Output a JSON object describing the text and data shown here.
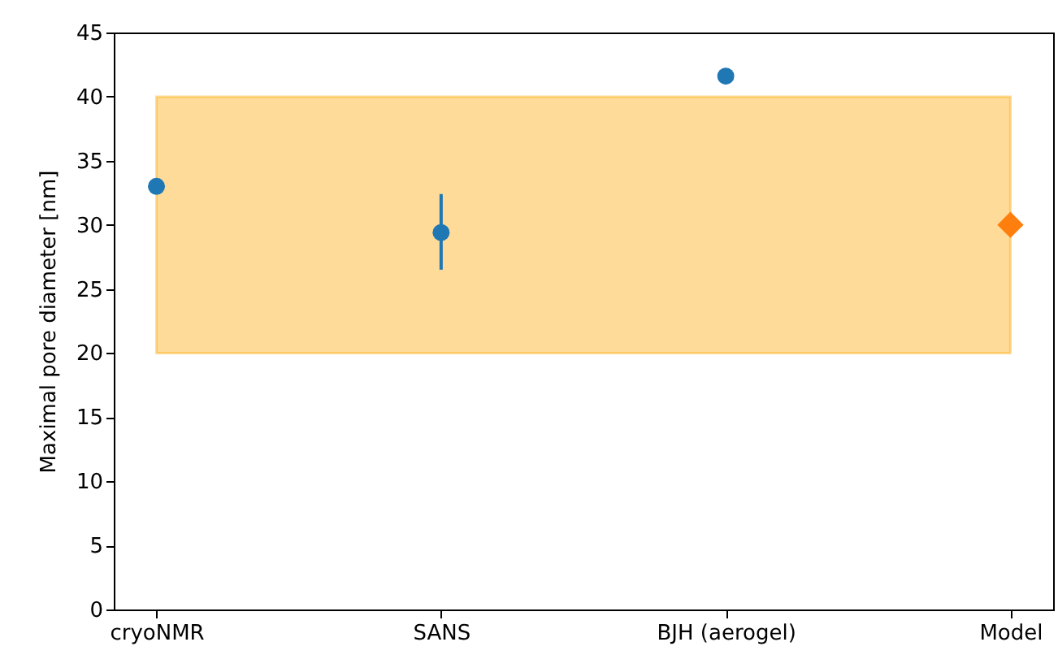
{
  "chart_data": {
    "type": "scatter",
    "ylabel": "Maximal pore diameter [nm]",
    "categories": [
      "cryoNMR",
      "SANS",
      "BJH (aerogel)",
      "Model"
    ],
    "ylim": [
      0,
      45
    ],
    "yticks": [
      0,
      5,
      10,
      15,
      20,
      25,
      30,
      35,
      40,
      45
    ],
    "series": [
      {
        "color": "#1f77b4",
        "marker": "circle",
        "values": [
          33.0,
          29.4,
          41.6,
          null
        ],
        "errors": [
          null,
          [
            26.5,
            32.4
          ],
          null,
          null
        ]
      },
      {
        "color": "#ff7f0e",
        "marker": "diamond",
        "values": [
          null,
          null,
          null,
          30.0
        ]
      }
    ],
    "bands": [
      {
        "axis": "y",
        "from": 20,
        "to": 40,
        "color": "#ffa500"
      }
    ]
  }
}
